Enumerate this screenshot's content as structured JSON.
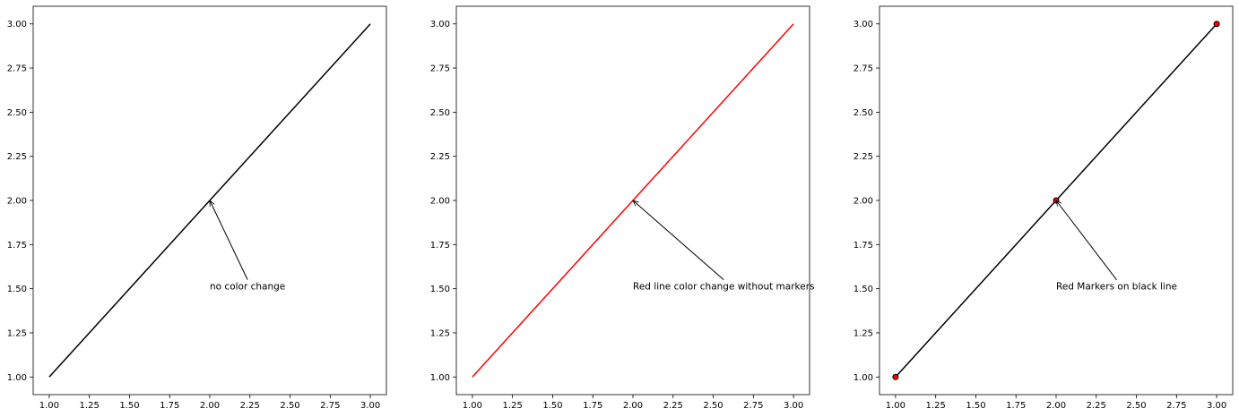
{
  "chart_data": [
    {
      "type": "line",
      "title": "",
      "xlabel": "",
      "ylabel": "",
      "x": [
        1,
        2,
        3
      ],
      "series": [
        {
          "values": [
            1,
            2,
            3
          ],
          "color": "#000000",
          "markers": false
        }
      ],
      "xlim": [
        0.9,
        3.1
      ],
      "ylim": [
        0.9,
        3.1
      ],
      "xticks": [
        "1.00",
        "1.25",
        "1.50",
        "1.75",
        "2.00",
        "2.25",
        "2.50",
        "2.75",
        "3.00"
      ],
      "yticks": [
        "1.00",
        "1.25",
        "1.50",
        "1.75",
        "2.00",
        "2.25",
        "2.50",
        "2.75",
        "3.00"
      ],
      "grid": false,
      "annotation": {
        "text": "no color change",
        "xy": [
          2,
          2
        ],
        "xytext": [
          2,
          1.5
        ]
      }
    },
    {
      "type": "line",
      "title": "",
      "xlabel": "",
      "ylabel": "",
      "x": [
        1,
        2,
        3
      ],
      "series": [
        {
          "values": [
            1,
            2,
            3
          ],
          "color": "#ff0000",
          "markers": false
        }
      ],
      "xlim": [
        0.9,
        3.1
      ],
      "ylim": [
        0.9,
        3.1
      ],
      "xticks": [
        "1.00",
        "1.25",
        "1.50",
        "1.75",
        "2.00",
        "2.25",
        "2.50",
        "2.75",
        "3.00"
      ],
      "yticks": [
        "1.00",
        "1.25",
        "1.50",
        "1.75",
        "2.00",
        "2.25",
        "2.50",
        "2.75",
        "3.00"
      ],
      "grid": false,
      "annotation": {
        "text": "Red line color change without markers",
        "xy": [
          2,
          2
        ],
        "xytext": [
          2,
          1.5
        ]
      }
    },
    {
      "type": "line",
      "title": "",
      "xlabel": "",
      "ylabel": "",
      "x": [
        1,
        2,
        3
      ],
      "series": [
        {
          "values": [
            1,
            2,
            3
          ],
          "color": "#000000",
          "markers": true,
          "marker_color": "#ff0000"
        }
      ],
      "xlim": [
        0.9,
        3.1
      ],
      "ylim": [
        0.9,
        3.1
      ],
      "xticks": [
        "1.00",
        "1.25",
        "1.50",
        "1.75",
        "2.00",
        "2.25",
        "2.50",
        "2.75",
        "3.00"
      ],
      "yticks": [
        "1.00",
        "1.25",
        "1.50",
        "1.75",
        "2.00",
        "2.25",
        "2.50",
        "2.75",
        "3.00"
      ],
      "grid": false,
      "annotation": {
        "text": "Red Markers on black line",
        "xy": [
          2,
          2
        ],
        "xytext": [
          2,
          1.5
        ]
      }
    }
  ]
}
